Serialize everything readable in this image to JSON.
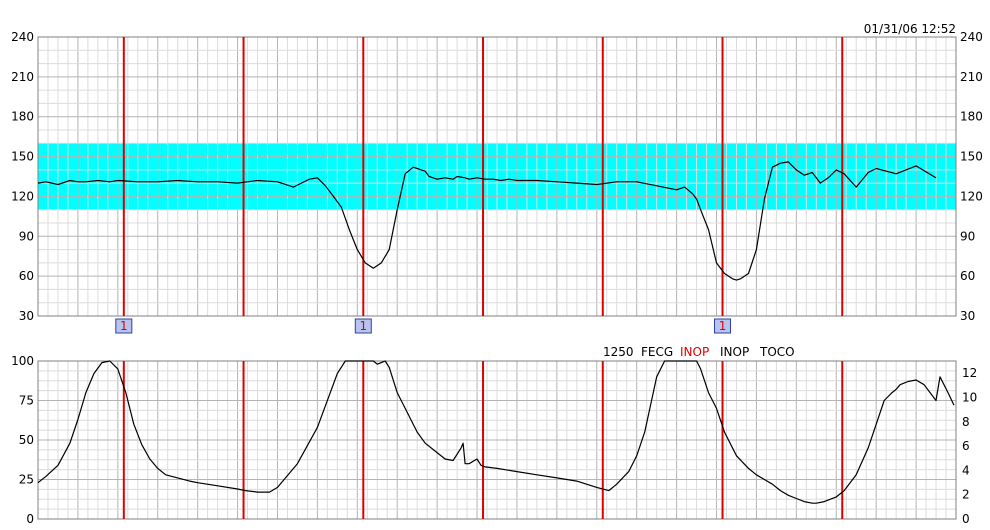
{
  "header": {
    "timestamp": "01/31/06 12:52"
  },
  "status_bar": [
    {
      "text": "1250",
      "color": "#000000"
    },
    {
      "text": "FECG",
      "color": "#000000"
    },
    {
      "text": "INOP",
      "color": "#e00000"
    },
    {
      "text": "INOP",
      "color": "#000000"
    },
    {
      "text": "TOCO",
      "color": "#000000"
    }
  ],
  "colors": {
    "grid_major": "#b4b4b4",
    "grid_minor": "#dcdcdc",
    "normal_band": "#00ffff",
    "marker_line": "#e00000",
    "trace": "#000000",
    "event_fill": "#b8c4f0",
    "event_text": "#e00000"
  },
  "chart_data": [
    {
      "type": "line",
      "series": [
        {
          "x": [
            0,
            2,
            5,
            8,
            10,
            12,
            15,
            18,
            20,
            25,
            30,
            35,
            40,
            45,
            50,
            55,
            60,
            64,
            66,
            68,
            70,
            72,
            74,
            76,
            78,
            80,
            82,
            84,
            86,
            88,
            90,
            92,
            94,
            95,
            96,
            97,
            98,
            100,
            102,
            104,
            105,
            107,
            108,
            110,
            112,
            114,
            116,
            118,
            120,
            125,
            130,
            135,
            140,
            145,
            150,
            155,
            160,
            162,
            164,
            165,
            166,
            168,
            170,
            172,
            174,
            175,
            176,
            178,
            180,
            182,
            184,
            186,
            188,
            190,
            192,
            194,
            196,
            198,
            200,
            202,
            205,
            208,
            210,
            215,
            220,
            225
          ],
          "y": [
            130,
            131,
            129,
            132,
            131,
            131,
            132,
            131,
            132,
            131,
            131,
            132,
            131,
            131,
            130,
            132,
            131,
            127,
            130,
            133,
            134,
            128,
            120,
            112,
            95,
            80,
            70,
            66,
            70,
            80,
            110,
            137,
            142,
            141,
            140,
            139,
            135,
            133,
            134,
            133,
            135,
            134,
            133,
            134,
            133,
            133,
            132,
            133,
            132,
            132,
            131,
            130,
            129,
            131,
            131,
            128,
            125,
            127,
            122,
            118,
            110,
            95,
            70,
            62,
            58,
            57,
            58,
            62,
            80,
            118,
            142,
            145,
            146,
            140,
            136,
            138,
            130,
            134,
            140,
            137,
            127,
            138,
            141,
            137,
            143,
            134
          ]
        }
      ],
      "xlim": [
        0,
        230
      ],
      "ylim": [
        30,
        240
      ],
      "y_ticks": [
        30,
        60,
        90,
        120,
        150,
        180,
        210,
        240
      ],
      "normal_band": [
        110,
        160
      ],
      "grid": true,
      "markers": [
        21.5,
        51.5,
        81.5,
        111.5,
        141.5,
        171.5,
        201.5
      ],
      "events": [
        {
          "x": 21.5,
          "label": "1"
        },
        {
          "x": 81.5,
          "label": "1"
        },
        {
          "x": 171.5,
          "label": "1"
        }
      ]
    },
    {
      "type": "line",
      "series": [
        {
          "x": [
            0,
            2,
            5,
            8,
            10,
            12,
            14,
            16,
            18,
            20,
            22,
            24,
            26,
            28,
            30,
            32,
            35,
            38,
            40,
            45,
            50,
            52,
            55,
            58,
            60,
            65,
            70,
            75,
            77,
            79,
            80,
            82,
            84,
            85,
            87,
            88,
            90,
            92,
            95,
            97,
            100,
            102,
            104,
            106,
            106.5,
            107,
            108,
            110,
            111,
            112,
            115,
            120,
            125,
            130,
            135,
            140,
            143,
            145,
            148,
            150,
            152,
            155,
            157,
            160,
            162,
            165,
            166,
            168,
            170,
            172,
            175,
            178,
            180,
            182,
            184,
            186,
            188,
            190,
            192,
            194,
            195,
            197,
            200,
            202,
            205,
            208,
            210,
            212,
            214,
            215,
            216,
            218,
            220,
            222,
            225,
            226,
            228,
            229.5
          ],
          "y": [
            23,
            27,
            34,
            48,
            63,
            80,
            92,
            99,
            100,
            95,
            80,
            60,
            47,
            38,
            32,
            28,
            26,
            24,
            23,
            21,
            19,
            18,
            17,
            17,
            20,
            35,
            58,
            92,
            100,
            100,
            100,
            100,
            100,
            98,
            100,
            96,
            80,
            70,
            55,
            48,
            42,
            38,
            37,
            45,
            48,
            35,
            35,
            38,
            34,
            33,
            32,
            30,
            28,
            26,
            24,
            20,
            18,
            22,
            30,
            40,
            55,
            90,
            100,
            100,
            100,
            100,
            95,
            80,
            70,
            55,
            40,
            32,
            28,
            25,
            22,
            18,
            15,
            13,
            11,
            10,
            10,
            11,
            14,
            18,
            28,
            45,
            60,
            75,
            80,
            82,
            85,
            87,
            88,
            85,
            75,
            90,
            80,
            72
          ]
        }
      ],
      "xlim": [
        0,
        230
      ],
      "ylim": [
        0,
        100
      ],
      "y_ticks": [
        0,
        25,
        50,
        75,
        100
      ],
      "y2_ticks": [
        0,
        2,
        4,
        6,
        8,
        10,
        12
      ],
      "grid": true,
      "markers": [
        21.5,
        51.5,
        81.5,
        111.5,
        141.5,
        171.5,
        201.5
      ]
    }
  ]
}
